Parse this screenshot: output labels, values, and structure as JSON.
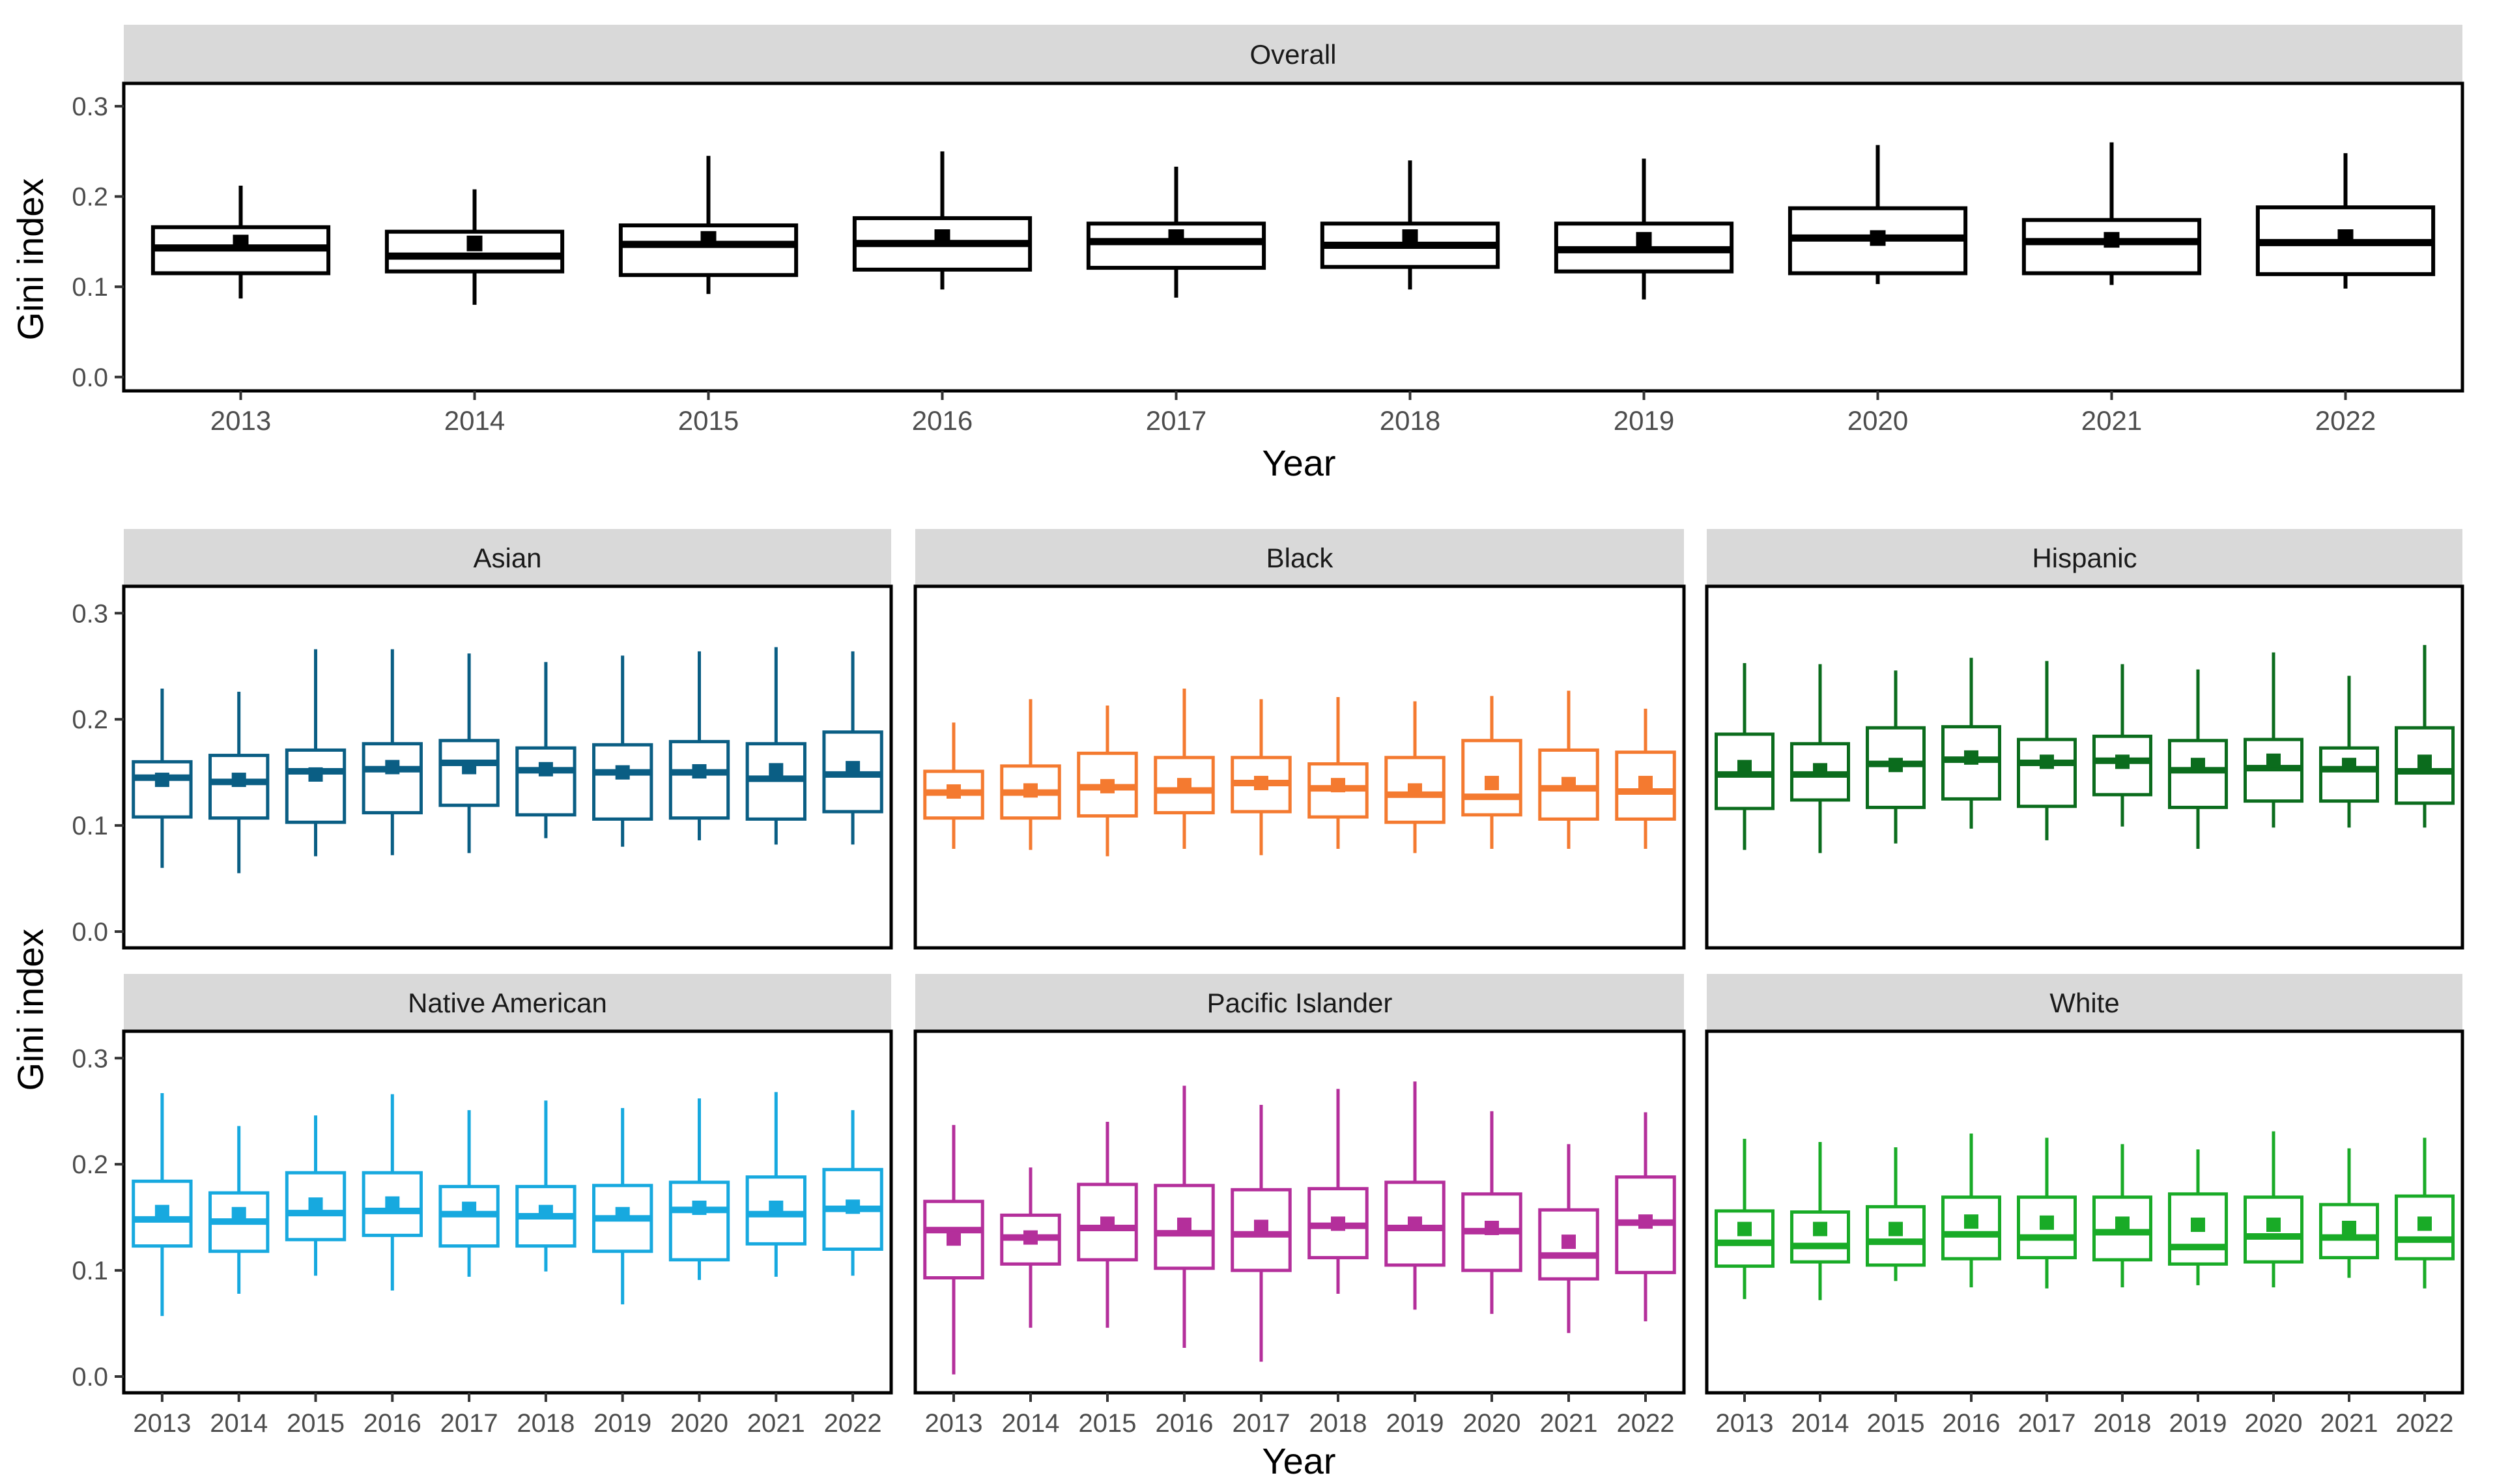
{
  "figure": {
    "top_xlabel": "Year",
    "bottom_xlabel": "Year",
    "ylabel_top": "Gini index",
    "ylabel_bottom": "Gini index"
  },
  "chart_data": [
    {
      "type": "boxplot",
      "title": "Overall",
      "color": "#000000",
      "categories": [
        "2013",
        "2014",
        "2015",
        "2016",
        "2017",
        "2018",
        "2019",
        "2020",
        "2021",
        "2022"
      ],
      "ylim": [
        0,
        0.31
      ],
      "yticks": [
        0.0,
        0.1,
        0.2,
        0.3
      ],
      "ytick_labels": [
        "0.0",
        "0.1",
        "0.2",
        "0.3"
      ],
      "xlabel": "Year",
      "ylabel": "Gini index",
      "series": [
        {
          "year": "2013",
          "whislo": 0.087,
          "q1": 0.115,
          "median": 0.143,
          "q3": 0.166,
          "whishi": 0.212,
          "mean": 0.149
        },
        {
          "year": "2014",
          "whislo": 0.08,
          "q1": 0.117,
          "median": 0.134,
          "q3": 0.161,
          "whishi": 0.208,
          "mean": 0.148
        },
        {
          "year": "2015",
          "whislo": 0.092,
          "q1": 0.113,
          "median": 0.147,
          "q3": 0.168,
          "whishi": 0.245,
          "mean": 0.153
        },
        {
          "year": "2016",
          "whislo": 0.097,
          "q1": 0.119,
          "median": 0.148,
          "q3": 0.176,
          "whishi": 0.25,
          "mean": 0.155
        },
        {
          "year": "2017",
          "whislo": 0.088,
          "q1": 0.121,
          "median": 0.15,
          "q3": 0.17,
          "whishi": 0.233,
          "mean": 0.155
        },
        {
          "year": "2018",
          "whislo": 0.097,
          "q1": 0.122,
          "median": 0.146,
          "q3": 0.17,
          "whishi": 0.24,
          "mean": 0.155
        },
        {
          "year": "2019",
          "whislo": 0.086,
          "q1": 0.117,
          "median": 0.141,
          "q3": 0.17,
          "whishi": 0.242,
          "mean": 0.152
        },
        {
          "year": "2020",
          "whislo": 0.103,
          "q1": 0.115,
          "median": 0.154,
          "q3": 0.187,
          "whishi": 0.257,
          "mean": 0.154
        },
        {
          "year": "2021",
          "whislo": 0.102,
          "q1": 0.115,
          "median": 0.15,
          "q3": 0.174,
          "whishi": 0.26,
          "mean": 0.152
        },
        {
          "year": "2022",
          "whislo": 0.098,
          "q1": 0.114,
          "median": 0.149,
          "q3": 0.188,
          "whishi": 0.248,
          "mean": 0.155
        }
      ]
    },
    {
      "type": "boxplot",
      "title": "Asian",
      "color": "#0a5e84",
      "categories": [
        "2013",
        "2014",
        "2015",
        "2016",
        "2017",
        "2018",
        "2019",
        "2020",
        "2021",
        "2022"
      ],
      "ylim": [
        0,
        0.31
      ],
      "yticks": [
        0.0,
        0.1,
        0.2,
        0.3
      ],
      "ytick_labels": [
        "0.0",
        "0.1",
        "0.2",
        "0.3"
      ],
      "series": [
        {
          "year": "2013",
          "whislo": 0.06,
          "q1": 0.108,
          "median": 0.145,
          "q3": 0.16,
          "whishi": 0.229,
          "mean": 0.143
        },
        {
          "year": "2014",
          "whislo": 0.055,
          "q1": 0.107,
          "median": 0.141,
          "q3": 0.166,
          "whishi": 0.226,
          "mean": 0.143
        },
        {
          "year": "2015",
          "whislo": 0.071,
          "q1": 0.103,
          "median": 0.151,
          "q3": 0.171,
          "whishi": 0.266,
          "mean": 0.148
        },
        {
          "year": "2016",
          "whislo": 0.072,
          "q1": 0.112,
          "median": 0.153,
          "q3": 0.177,
          "whishi": 0.266,
          "mean": 0.155
        },
        {
          "year": "2017",
          "whislo": 0.074,
          "q1": 0.119,
          "median": 0.159,
          "q3": 0.18,
          "whishi": 0.262,
          "mean": 0.155
        },
        {
          "year": "2018",
          "whislo": 0.088,
          "q1": 0.11,
          "median": 0.152,
          "q3": 0.173,
          "whishi": 0.254,
          "mean": 0.153
        },
        {
          "year": "2019",
          "whislo": 0.08,
          "q1": 0.106,
          "median": 0.15,
          "q3": 0.176,
          "whishi": 0.26,
          "mean": 0.15
        },
        {
          "year": "2020",
          "whislo": 0.086,
          "q1": 0.107,
          "median": 0.15,
          "q3": 0.179,
          "whishi": 0.264,
          "mean": 0.151
        },
        {
          "year": "2021",
          "whislo": 0.082,
          "q1": 0.106,
          "median": 0.144,
          "q3": 0.177,
          "whishi": 0.268,
          "mean": 0.152
        },
        {
          "year": "2022",
          "whislo": 0.082,
          "q1": 0.113,
          "median": 0.148,
          "q3": 0.188,
          "whishi": 0.264,
          "mean": 0.154
        }
      ]
    },
    {
      "type": "boxplot",
      "title": "Black",
      "color": "#f47a30",
      "categories": [
        "2013",
        "2014",
        "2015",
        "2016",
        "2017",
        "2018",
        "2019",
        "2020",
        "2021",
        "2022"
      ],
      "ylim": [
        0,
        0.31
      ],
      "yticks": [
        0.0,
        0.1,
        0.2,
        0.3
      ],
      "ytick_labels": [
        "0.0",
        "0.1",
        "0.2",
        "0.3"
      ],
      "series": [
        {
          "year": "2013",
          "whislo": 0.078,
          "q1": 0.107,
          "median": 0.131,
          "q3": 0.151,
          "whishi": 0.197,
          "mean": 0.132
        },
        {
          "year": "2014",
          "whislo": 0.077,
          "q1": 0.107,
          "median": 0.131,
          "q3": 0.156,
          "whishi": 0.219,
          "mean": 0.133
        },
        {
          "year": "2015",
          "whislo": 0.071,
          "q1": 0.109,
          "median": 0.136,
          "q3": 0.168,
          "whishi": 0.213,
          "mean": 0.137
        },
        {
          "year": "2016",
          "whislo": 0.078,
          "q1": 0.112,
          "median": 0.133,
          "q3": 0.164,
          "whishi": 0.229,
          "mean": 0.138
        },
        {
          "year": "2017",
          "whislo": 0.072,
          "q1": 0.113,
          "median": 0.14,
          "q3": 0.164,
          "whishi": 0.219,
          "mean": 0.14
        },
        {
          "year": "2018",
          "whislo": 0.078,
          "q1": 0.108,
          "median": 0.135,
          "q3": 0.158,
          "whishi": 0.221,
          "mean": 0.138
        },
        {
          "year": "2019",
          "whislo": 0.074,
          "q1": 0.103,
          "median": 0.129,
          "q3": 0.164,
          "whishi": 0.217,
          "mean": 0.133
        },
        {
          "year": "2020",
          "whislo": 0.078,
          "q1": 0.11,
          "median": 0.127,
          "q3": 0.18,
          "whishi": 0.222,
          "mean": 0.14
        },
        {
          "year": "2021",
          "whislo": 0.078,
          "q1": 0.106,
          "median": 0.135,
          "q3": 0.171,
          "whishi": 0.227,
          "mean": 0.139
        },
        {
          "year": "2022",
          "whislo": 0.078,
          "q1": 0.106,
          "median": 0.132,
          "q3": 0.169,
          "whishi": 0.21,
          "mean": 0.14
        }
      ]
    },
    {
      "type": "boxplot",
      "title": "Hispanic",
      "color": "#0b6c1d",
      "categories": [
        "2013",
        "2014",
        "2015",
        "2016",
        "2017",
        "2018",
        "2019",
        "2020",
        "2021",
        "2022"
      ],
      "ylim": [
        0,
        0.31
      ],
      "yticks": [
        0.0,
        0.1,
        0.2,
        0.3
      ],
      "ytick_labels": [
        "0.0",
        "0.1",
        "0.2",
        "0.3"
      ],
      "series": [
        {
          "year": "2013",
          "whislo": 0.077,
          "q1": 0.116,
          "median": 0.148,
          "q3": 0.186,
          "whishi": 0.253,
          "mean": 0.155
        },
        {
          "year": "2014",
          "whislo": 0.074,
          "q1": 0.124,
          "median": 0.148,
          "q3": 0.177,
          "whishi": 0.252,
          "mean": 0.152
        },
        {
          "year": "2015",
          "whislo": 0.083,
          "q1": 0.117,
          "median": 0.158,
          "q3": 0.192,
          "whishi": 0.246,
          "mean": 0.157
        },
        {
          "year": "2016",
          "whislo": 0.097,
          "q1": 0.125,
          "median": 0.162,
          "q3": 0.193,
          "whishi": 0.258,
          "mean": 0.164
        },
        {
          "year": "2017",
          "whislo": 0.086,
          "q1": 0.118,
          "median": 0.159,
          "q3": 0.181,
          "whishi": 0.255,
          "mean": 0.16
        },
        {
          "year": "2018",
          "whislo": 0.099,
          "q1": 0.129,
          "median": 0.161,
          "q3": 0.184,
          "whishi": 0.252,
          "mean": 0.16
        },
        {
          "year": "2019",
          "whislo": 0.078,
          "q1": 0.117,
          "median": 0.152,
          "q3": 0.18,
          "whishi": 0.247,
          "mean": 0.157
        },
        {
          "year": "2020",
          "whislo": 0.098,
          "q1": 0.123,
          "median": 0.154,
          "q3": 0.181,
          "whishi": 0.263,
          "mean": 0.161
        },
        {
          "year": "2021",
          "whislo": 0.098,
          "q1": 0.123,
          "median": 0.153,
          "q3": 0.173,
          "whishi": 0.241,
          "mean": 0.157
        },
        {
          "year": "2022",
          "whislo": 0.098,
          "q1": 0.121,
          "median": 0.151,
          "q3": 0.192,
          "whishi": 0.27,
          "mean": 0.16
        }
      ]
    },
    {
      "type": "boxplot",
      "title": "Native American",
      "color": "#17a9df",
      "categories": [
        "2013",
        "2014",
        "2015",
        "2016",
        "2017",
        "2018",
        "2019",
        "2020",
        "2021",
        "2022"
      ],
      "ylim": [
        0,
        0.31
      ],
      "yticks": [
        0.0,
        0.1,
        0.2,
        0.3
      ],
      "ytick_labels": [
        "0.0",
        "0.1",
        "0.2",
        "0.3"
      ],
      "series": [
        {
          "year": "2013",
          "whislo": 0.057,
          "q1": 0.123,
          "median": 0.148,
          "q3": 0.184,
          "whishi": 0.267,
          "mean": 0.155
        },
        {
          "year": "2014",
          "whislo": 0.078,
          "q1": 0.118,
          "median": 0.146,
          "q3": 0.173,
          "whishi": 0.236,
          "mean": 0.153
        },
        {
          "year": "2015",
          "whislo": 0.095,
          "q1": 0.129,
          "median": 0.154,
          "q3": 0.192,
          "whishi": 0.246,
          "mean": 0.162
        },
        {
          "year": "2016",
          "whislo": 0.081,
          "q1": 0.133,
          "median": 0.156,
          "q3": 0.192,
          "whishi": 0.266,
          "mean": 0.163
        },
        {
          "year": "2017",
          "whislo": 0.094,
          "q1": 0.123,
          "median": 0.153,
          "q3": 0.179,
          "whishi": 0.251,
          "mean": 0.158
        },
        {
          "year": "2018",
          "whislo": 0.099,
          "q1": 0.123,
          "median": 0.151,
          "q3": 0.179,
          "whishi": 0.26,
          "mean": 0.155
        },
        {
          "year": "2019",
          "whislo": 0.068,
          "q1": 0.118,
          "median": 0.149,
          "q3": 0.18,
          "whishi": 0.253,
          "mean": 0.153
        },
        {
          "year": "2020",
          "whislo": 0.091,
          "q1": 0.11,
          "median": 0.157,
          "q3": 0.183,
          "whishi": 0.262,
          "mean": 0.159
        },
        {
          "year": "2021",
          "whislo": 0.094,
          "q1": 0.125,
          "median": 0.153,
          "q3": 0.188,
          "whishi": 0.268,
          "mean": 0.159
        },
        {
          "year": "2022",
          "whislo": 0.095,
          "q1": 0.12,
          "median": 0.158,
          "q3": 0.195,
          "whishi": 0.251,
          "mean": 0.16
        }
      ]
    },
    {
      "type": "boxplot",
      "title": "Pacific Islander",
      "color": "#b42f9b",
      "categories": [
        "2013",
        "2014",
        "2015",
        "2016",
        "2017",
        "2018",
        "2019",
        "2020",
        "2021",
        "2022"
      ],
      "ylim": [
        0,
        0.31
      ],
      "yticks": [
        0.0,
        0.1,
        0.2,
        0.3
      ],
      "ytick_labels": [
        "0.0",
        "0.1",
        "0.2",
        "0.3"
      ],
      "series": [
        {
          "year": "2013",
          "whislo": 0.002,
          "q1": 0.093,
          "median": 0.138,
          "q3": 0.165,
          "whishi": 0.237,
          "mean": 0.13
        },
        {
          "year": "2014",
          "whislo": 0.046,
          "q1": 0.106,
          "median": 0.131,
          "q3": 0.152,
          "whishi": 0.197,
          "mean": 0.131
        },
        {
          "year": "2015",
          "whislo": 0.046,
          "q1": 0.11,
          "median": 0.14,
          "q3": 0.181,
          "whishi": 0.24,
          "mean": 0.144
        },
        {
          "year": "2016",
          "whislo": 0.027,
          "q1": 0.102,
          "median": 0.135,
          "q3": 0.18,
          "whishi": 0.274,
          "mean": 0.143
        },
        {
          "year": "2017",
          "whislo": 0.014,
          "q1": 0.1,
          "median": 0.134,
          "q3": 0.176,
          "whishi": 0.256,
          "mean": 0.141
        },
        {
          "year": "2018",
          "whislo": 0.078,
          "q1": 0.112,
          "median": 0.142,
          "q3": 0.177,
          "whishi": 0.271,
          "mean": 0.144
        },
        {
          "year": "2019",
          "whislo": 0.063,
          "q1": 0.105,
          "median": 0.14,
          "q3": 0.183,
          "whishi": 0.278,
          "mean": 0.144
        },
        {
          "year": "2020",
          "whislo": 0.059,
          "q1": 0.1,
          "median": 0.137,
          "q3": 0.172,
          "whishi": 0.25,
          "mean": 0.14
        },
        {
          "year": "2021",
          "whislo": 0.041,
          "q1": 0.092,
          "median": 0.114,
          "q3": 0.157,
          "whishi": 0.219,
          "mean": 0.127
        },
        {
          "year": "2022",
          "whislo": 0.052,
          "q1": 0.098,
          "median": 0.145,
          "q3": 0.188,
          "whishi": 0.249,
          "mean": 0.146
        }
      ]
    },
    {
      "type": "boxplot",
      "title": "White",
      "color": "#19ab27",
      "categories": [
        "2013",
        "2014",
        "2015",
        "2016",
        "2017",
        "2018",
        "2019",
        "2020",
        "2021",
        "2022"
      ],
      "ylim": [
        0,
        0.31
      ],
      "yticks": [
        0.0,
        0.1,
        0.2,
        0.3
      ],
      "ytick_labels": [
        "0.0",
        "0.1",
        "0.2",
        "0.3"
      ],
      "series": [
        {
          "year": "2013",
          "whislo": 0.073,
          "q1": 0.104,
          "median": 0.126,
          "q3": 0.156,
          "whishi": 0.224,
          "mean": 0.139
        },
        {
          "year": "2014",
          "whislo": 0.072,
          "q1": 0.108,
          "median": 0.123,
          "q3": 0.155,
          "whishi": 0.221,
          "mean": 0.139
        },
        {
          "year": "2015",
          "whislo": 0.09,
          "q1": 0.105,
          "median": 0.127,
          "q3": 0.16,
          "whishi": 0.216,
          "mean": 0.139
        },
        {
          "year": "2016",
          "whislo": 0.084,
          "q1": 0.111,
          "median": 0.134,
          "q3": 0.169,
          "whishi": 0.229,
          "mean": 0.146
        },
        {
          "year": "2017",
          "whislo": 0.083,
          "q1": 0.112,
          "median": 0.131,
          "q3": 0.169,
          "whishi": 0.225,
          "mean": 0.145
        },
        {
          "year": "2018",
          "whislo": 0.084,
          "q1": 0.11,
          "median": 0.136,
          "q3": 0.169,
          "whishi": 0.219,
          "mean": 0.144
        },
        {
          "year": "2019",
          "whislo": 0.086,
          "q1": 0.106,
          "median": 0.122,
          "q3": 0.172,
          "whishi": 0.214,
          "mean": 0.143
        },
        {
          "year": "2020",
          "whislo": 0.084,
          "q1": 0.108,
          "median": 0.132,
          "q3": 0.169,
          "whishi": 0.231,
          "mean": 0.143
        },
        {
          "year": "2021",
          "whislo": 0.093,
          "q1": 0.112,
          "median": 0.131,
          "q3": 0.162,
          "whishi": 0.215,
          "mean": 0.14
        },
        {
          "year": "2022",
          "whislo": 0.083,
          "q1": 0.111,
          "median": 0.129,
          "q3": 0.17,
          "whishi": 0.225,
          "mean": 0.144
        }
      ]
    }
  ]
}
